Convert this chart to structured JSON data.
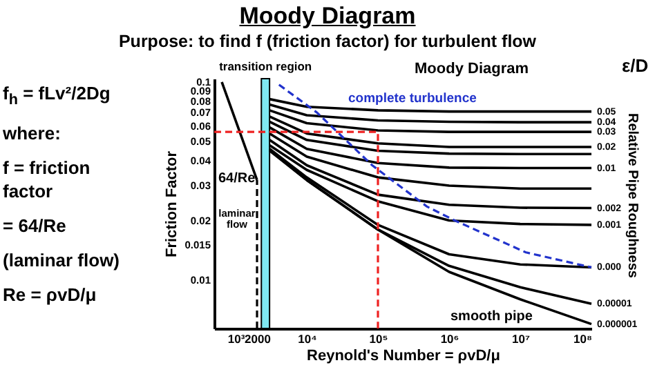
{
  "chart_data": {
    "type": "line",
    "title": "Moody Diagram",
    "subtitle": "Purpose: to find f (friction factor) for turbulent flow",
    "xlabel": "Reynold's Number = ρvD/μ",
    "ylabel": "Friction Factor",
    "log": "xy",
    "xlim": [
      500,
      100000000
    ],
    "ylim": [
      0.0057,
      0.104
    ],
    "xticks": [
      {
        "value": 1000,
        "label": "10³"
      },
      2000,
      {
        "value": 10000,
        "label": "10⁴"
      },
      {
        "value": 100000,
        "label": "10⁵"
      },
      {
        "value": 1000000,
        "label": "10⁶"
      },
      {
        "value": 10000000,
        "label": "10⁷"
      },
      {
        "value": 100000000,
        "label": "10⁸"
      }
    ],
    "yticks": [
      0.01,
      0.015,
      0.02,
      0.03,
      0.04,
      0.05,
      0.06,
      0.07,
      0.08,
      0.09,
      0.1
    ],
    "x": [
      3000,
      10000,
      100000,
      1000000,
      10000000,
      100000000
    ],
    "series": [
      {
        "name": "0.05",
        "color": "#000000",
        "values": [
          0.082,
          0.075,
          0.072,
          0.071,
          0.071,
          0.071
        ]
      },
      {
        "name": "0.04",
        "color": "#000000",
        "values": [
          0.077,
          0.068,
          0.064,
          0.063,
          0.0627,
          0.0627
        ]
      },
      {
        "name": "0.03",
        "color": "#000000",
        "values": [
          0.072,
          0.062,
          0.057,
          0.056,
          0.056,
          0.056
        ]
      },
      {
        "name": "0.02",
        "color": "#000000",
        "values": [
          0.067,
          0.055,
          0.049,
          0.047,
          0.047,
          0.047
        ]
      },
      {
        "color": "#000000",
        "values": [
          0.063,
          0.051,
          0.045,
          0.0435,
          0.0433,
          0.0433
        ]
      },
      {
        "name": "0.01",
        "color": "#000000",
        "values": [
          0.059,
          0.046,
          0.039,
          0.037,
          0.0368,
          0.0368
        ]
      },
      {
        "color": "#000000",
        "values": [
          0.055,
          0.042,
          0.033,
          0.03,
          0.029,
          0.029
        ]
      },
      {
        "name": "0.002",
        "color": "#000000",
        "values": [
          0.051,
          0.038,
          0.027,
          0.024,
          0.0232,
          0.0231
        ]
      },
      {
        "name": "0.001",
        "color": "#000000",
        "values": [
          0.048,
          0.036,
          0.025,
          0.02,
          0.0192,
          0.019
        ]
      },
      {
        "name": "0.000",
        "color": "#000000",
        "values": [
          0.046,
          0.033,
          0.019,
          0.0135,
          0.012,
          0.0116
        ]
      },
      {
        "name": "0.00001",
        "color": "#000000",
        "values": [
          0.0455,
          0.032,
          0.018,
          0.0118,
          0.0092,
          0.0076
        ]
      },
      {
        "name": "0.000001",
        "color": "#000000",
        "values": [
          0.045,
          0.032,
          0.018,
          0.011,
          0.008,
          0.006
        ]
      },
      {
        "color": "#000000",
        "x": [
          640,
          2000
        ],
        "values": [
          0.1,
          0.032
        ]
      },
      {
        "color": "#000000",
        "line_style": "dashed",
        "x": [
          2000,
          2000
        ],
        "values": [
          0.0057,
          0.032
        ]
      },
      {
        "color": "#2233cc",
        "line_style": "dashed",
        "x": [
          4070,
          14000,
          83000,
          490000,
          1200000,
          12000000,
          100000000
        ],
        "values": [
          0.097,
          0.07,
          0.038,
          0.0235,
          0.02,
          0.0138,
          0.0116
        ]
      },
      {
        "color": "#ee2222",
        "line_style": "dashed",
        "x": [
          500,
          100000,
          100000
        ],
        "values": [
          0.056,
          0.056,
          0.0057
        ]
      }
    ],
    "bands": [
      {
        "axis": "x",
        "from": 2300,
        "to": 3000,
        "label": "transition region",
        "color": "#7fe8f2"
      }
    ],
    "annotations": [
      "Moody Diagram",
      "ε/D",
      "Relative Pipe Roughness",
      "f$_{h}$ = fLv²/2Dg",
      "where:",
      "f = friction factor",
      "= 64/Re",
      "(laminar flow)",
      "Re = ρvD/μ",
      "complete turbulence",
      "64/Re",
      "laminar flow",
      "smooth pipe"
    ],
    "grid": false,
    "marker": "none"
  }
}
